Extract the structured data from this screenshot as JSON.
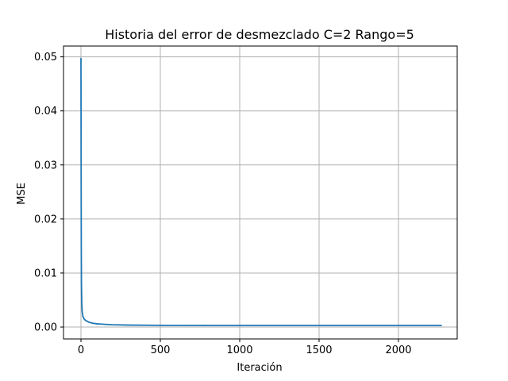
{
  "chart_data": {
    "type": "line",
    "title": "Historia del error de desmezclado C=2 Rango=5",
    "xlabel": "Iteración",
    "ylabel": "MSE",
    "xlim": [
      -110,
      2370
    ],
    "ylim": [
      -0.0022,
      0.052
    ],
    "xticks": [
      0,
      500,
      1000,
      1500,
      2000
    ],
    "xtick_labels": [
      "0",
      "500",
      "1000",
      "1500",
      "2000"
    ],
    "yticks": [
      0.0,
      0.01,
      0.02,
      0.03,
      0.04,
      0.05
    ],
    "ytick_labels": [
      "0.00",
      "0.01",
      "0.02",
      "0.03",
      "0.04",
      "0.05"
    ],
    "grid": true,
    "color": "#1f77b4",
    "series": [
      {
        "x": [
          0,
          1,
          2,
          3,
          5,
          8,
          12,
          20,
          30,
          50,
          75,
          100,
          150,
          200,
          300,
          500,
          800,
          1000,
          1500,
          2000,
          2270
        ],
        "values": [
          0.0497,
          0.03,
          0.015,
          0.008,
          0.0045,
          0.0028,
          0.002,
          0.0015,
          0.0012,
          0.0009,
          0.0007,
          0.0006,
          0.0005,
          0.00042,
          0.00036,
          0.00032,
          0.0003,
          0.0003,
          0.0003,
          0.0003,
          0.0003
        ]
      }
    ]
  }
}
